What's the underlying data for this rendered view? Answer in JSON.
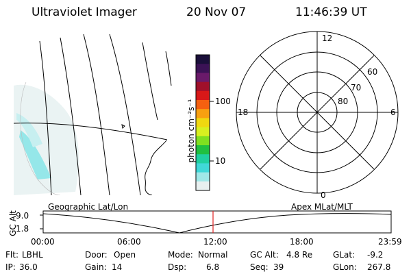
{
  "header": {
    "instrument": "Ultraviolet Imager",
    "date": "20 Nov 07",
    "time": "11:46:39 UT"
  },
  "colorbar": {
    "unit_label": "photon cm⁻²s⁻¹",
    "tick_labels": [
      "100",
      "10"
    ],
    "colors": [
      "#1a0f3a",
      "#3b1255",
      "#6a1a6a",
      "#a0102a",
      "#d81818",
      "#f56010",
      "#f8a010",
      "#f0d810",
      "#d8f020",
      "#80e020",
      "#20c040",
      "#20d0a0",
      "#40d8d8",
      "#a0e8e8",
      "#e8f0f0"
    ]
  },
  "geo_panel": {
    "caption": "Geographic Lat/Lon"
  },
  "polar_panel": {
    "caption": "Apex MLat/MLT",
    "mlt_labels": {
      "top": "12",
      "left": "18",
      "right": "6",
      "bottom": "0"
    },
    "lat_labels": [
      "60",
      "70",
      "80"
    ]
  },
  "timeline": {
    "ylabel": "GC Alt",
    "ytick_top": "9.0",
    "ytick_bottom": "1.8",
    "time_labels": [
      "00:00",
      "06:00",
      "12:00",
      "18:00",
      "23:59"
    ],
    "marker_color": "#e02020",
    "marker_time": "11:46:39"
  },
  "status": {
    "row1": [
      {
        "key": "Flt:",
        "value": "LBHL"
      },
      {
        "key": "Door:",
        "value": "Open"
      },
      {
        "key": "Mode:",
        "value": "Normal"
      },
      {
        "key": "GC Alt:",
        "value": "4.8 Re"
      },
      {
        "key": "GLat:",
        "value": "-9.2"
      }
    ],
    "row2": [
      {
        "key": "IP:",
        "value": "36.0"
      },
      {
        "key": "Gain:",
        "value": "14"
      },
      {
        "key": "Dsp:",
        "value": "6.8"
      },
      {
        "key": "Seq:",
        "value": "39"
      },
      {
        "key": "GLon:",
        "value": "267.8"
      }
    ]
  }
}
